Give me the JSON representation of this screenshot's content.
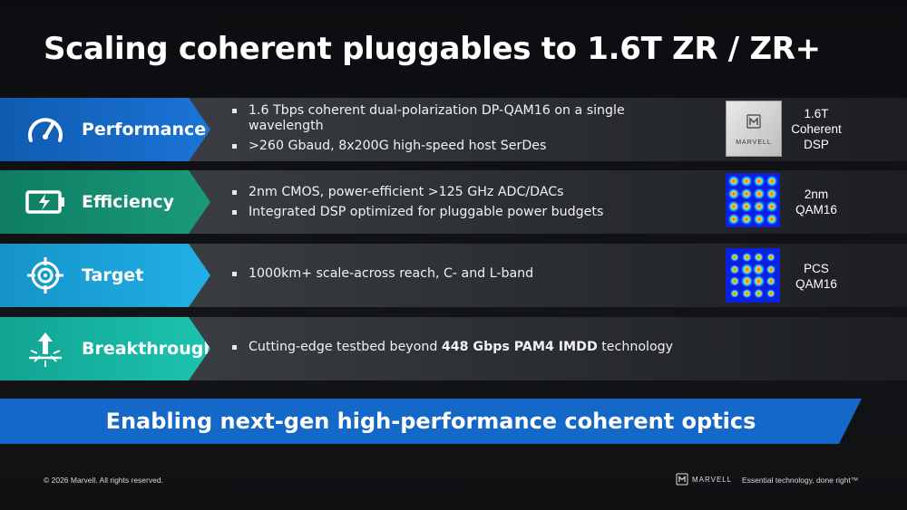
{
  "title": "Scaling coherent pluggables to 1.6T ZR / ZR+",
  "rows": [
    {
      "label": "Performance",
      "icon": "gauge-icon",
      "color": "#1565c0",
      "bullets": [
        "1.6 Tbps coherent dual-polarization DP-QAM16 on a single wavelength",
        ">260 Gbaud, 8x200G high-speed host SerDes"
      ],
      "thumb": {
        "type": "chip",
        "chip_text": "MARVELL",
        "label_lines": [
          "1.6T",
          "Coherent",
          "DSP"
        ]
      }
    },
    {
      "label": "Efficiency",
      "icon": "battery-charging-icon",
      "color": "#168a6e",
      "bullets": [
        "2nm CMOS, power-efficient >125 GHz ADC/DACs",
        "Integrated DSP optimized for pluggable power budgets"
      ],
      "thumb": {
        "type": "constellation",
        "label_lines": [
          "2nm",
          "QAM16"
        ]
      }
    },
    {
      "label": "Target",
      "icon": "crosshair-icon",
      "color": "#1aa3dc",
      "bullets": [
        "1000km+ scale-across reach, C- and L-band"
      ],
      "thumb": {
        "type": "constellation",
        "label_lines": [
          "PCS",
          "QAM16"
        ]
      }
    },
    {
      "label": "Breakthrough",
      "icon": "breakthrough-arrow-icon",
      "color": "#15b3a3",
      "bullets_rich": {
        "before": "Cutting-edge testbed beyond ",
        "bold": "448 Gbps PAM4 IMDD",
        "after": " technology"
      }
    }
  ],
  "banner": "Enabling next-gen high-performance coherent optics",
  "footer": {
    "copyright": "© 2026 Marvell. All rights reserved.",
    "logo_text": "MARVELL",
    "tagline": "Essential technology, done right™"
  }
}
